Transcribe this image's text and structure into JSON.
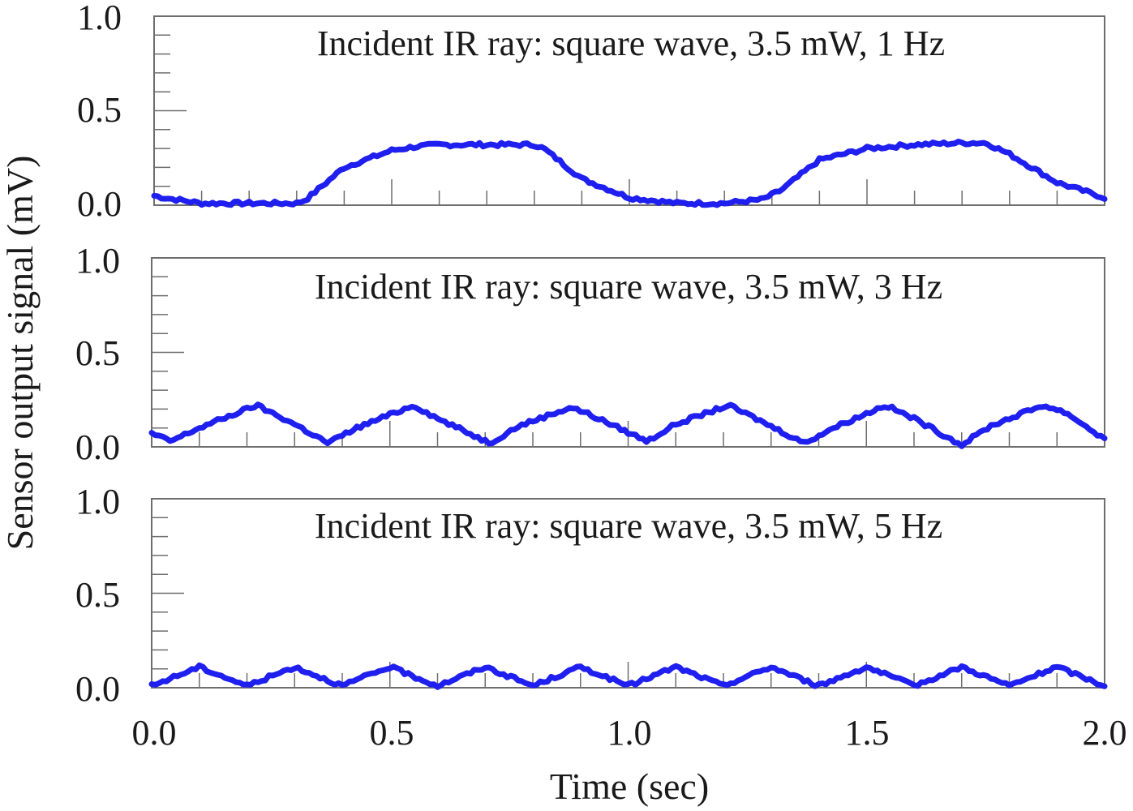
{
  "chart_data": [
    {
      "type": "line",
      "annotation": "Incident IR ray: square wave, 3.5 mW, 1 Hz",
      "frequency_hz": 1,
      "xlim": [
        0,
        2.0
      ],
      "ylim": [
        0,
        1.0
      ],
      "low_level": 0.0,
      "high_level": 0.33,
      "series": [
        {
          "x": [
            0.0,
            0.02,
            0.1,
            0.2,
            0.3,
            0.32,
            0.4,
            0.5,
            0.55,
            0.6,
            0.7,
            0.8,
            0.82,
            0.9,
            1.0,
            1.1,
            1.2,
            1.28,
            1.32,
            1.4,
            1.5,
            1.55,
            1.6,
            1.7,
            1.75,
            1.8,
            1.9,
            2.0
          ],
          "y": [
            0.05,
            0.04,
            0.01,
            0.01,
            0.01,
            0.03,
            0.2,
            0.29,
            0.31,
            0.32,
            0.32,
            0.32,
            0.3,
            0.14,
            0.04,
            0.01,
            0.01,
            0.03,
            0.08,
            0.24,
            0.3,
            0.31,
            0.32,
            0.33,
            0.33,
            0.27,
            0.12,
            0.04
          ]
        }
      ]
    },
    {
      "type": "line",
      "annotation": "Incident IR ray: square wave, 3.5 mW, 3 Hz",
      "frequency_hz": 3,
      "xlim": [
        0,
        2.0
      ],
      "ylim": [
        0,
        1.0
      ],
      "low_level": 0.02,
      "high_level": 0.22,
      "series": [
        {
          "x": [
            0.0,
            0.04,
            0.1,
            0.2,
            0.22,
            0.3,
            0.37,
            0.43,
            0.55,
            0.6,
            0.71,
            0.77,
            0.88,
            0.92,
            1.04,
            1.1,
            1.21,
            1.26,
            1.37,
            1.43,
            1.54,
            1.6,
            1.7,
            1.76,
            1.87,
            1.92,
            2.0
          ],
          "y": [
            0.07,
            0.03,
            0.1,
            0.2,
            0.22,
            0.12,
            0.02,
            0.1,
            0.22,
            0.15,
            0.02,
            0.11,
            0.21,
            0.17,
            0.03,
            0.12,
            0.22,
            0.16,
            0.02,
            0.1,
            0.22,
            0.15,
            0.01,
            0.11,
            0.22,
            0.18,
            0.04
          ]
        }
      ]
    },
    {
      "type": "line",
      "annotation": "Incident IR ray: square wave, 3.5 mW, 5 Hz",
      "frequency_hz": 5,
      "xlim": [
        0,
        2.0
      ],
      "ylim": [
        0,
        1.0
      ],
      "low_level": 0.0,
      "high_level": 0.11,
      "series": [
        {
          "x": [
            0.0,
            0.1,
            0.2,
            0.3,
            0.4,
            0.5,
            0.6,
            0.7,
            0.8,
            0.9,
            1.0,
            1.1,
            1.2,
            1.3,
            1.4,
            1.5,
            1.6,
            1.7,
            1.8,
            1.9,
            2.0
          ],
          "y": [
            0.01,
            0.11,
            0.01,
            0.11,
            0.01,
            0.11,
            0.01,
            0.11,
            0.01,
            0.11,
            0.01,
            0.11,
            0.01,
            0.11,
            0.01,
            0.11,
            0.01,
            0.11,
            0.01,
            0.11,
            0.01
          ]
        }
      ]
    }
  ],
  "y_ticks": [
    "0.0",
    "0.5",
    "1.0"
  ],
  "x_ticks": [
    "0.0",
    "0.5",
    "1.0",
    "1.5",
    "2.0"
  ],
  "ylabel": "Sensor output signal (mV)",
  "xlabel": "Time (sec)",
  "colors": {
    "line": "#1f1ff0",
    "frame": "#6e6e6e",
    "text": "#1a1a1a"
  }
}
